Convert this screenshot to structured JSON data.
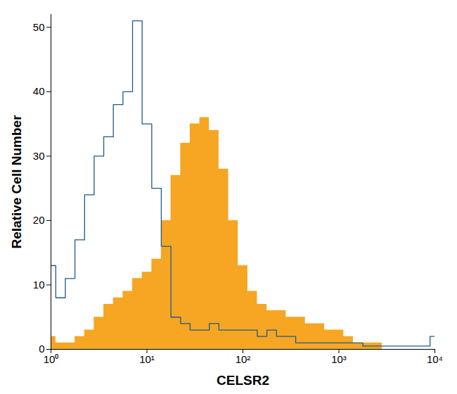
{
  "chart_data": {
    "type": "histogram",
    "x_label": "CELSR2",
    "y_label": "Relative Cell Number",
    "log": "x",
    "grid": false,
    "xlim": [
      1,
      10000
    ],
    "ylim": [
      0,
      52
    ],
    "xticks": [
      {
        "value": 1,
        "label": "10⁰"
      },
      {
        "value": 10,
        "label": "10¹"
      },
      {
        "value": 100,
        "label": "10²"
      },
      {
        "value": 1000,
        "label": "10³"
      },
      {
        "value": 10000,
        "label": "10⁴"
      }
    ],
    "yticks": [
      0,
      10,
      20,
      30,
      40,
      50
    ],
    "x": [
      1,
      1.26,
      1.58,
      2.0,
      2.51,
      3.16,
      3.98,
      5.01,
      6.31,
      7.94,
      10,
      12.6,
      15.8,
      20,
      25.1,
      31.6,
      39.8,
      50.1,
      63.1,
      79.4,
      100,
      126,
      158,
      200,
      251,
      316,
      398,
      501,
      631,
      794,
      1000,
      1259,
      1585,
      1995,
      2512,
      3162,
      3981,
      5012,
      6310,
      7943,
      10000
    ],
    "series": [
      {
        "type": "area",
        "color": "#f6a623",
        "values": [
          2,
          1,
          1,
          2,
          3,
          5,
          7,
          8,
          9,
          11,
          12,
          14,
          20,
          27,
          32,
          35,
          36,
          34,
          28,
          20,
          13,
          9,
          7,
          6,
          6,
          5,
          5,
          4,
          4,
          3,
          3,
          2,
          1,
          1,
          1,
          0,
          0,
          0,
          0,
          0,
          0
        ]
      },
      {
        "type": "line",
        "color": "#1f5a8c",
        "values": [
          13,
          8,
          11,
          17,
          24,
          30,
          33,
          38,
          40,
          51,
          35,
          25,
          16,
          5,
          4,
          3,
          3,
          4,
          3,
          3,
          3,
          3,
          2,
          3,
          2,
          2,
          1,
          1,
          1,
          1,
          1,
          1,
          1,
          0.5,
          0.5,
          0.5,
          0.5,
          0.5,
          0.5,
          0.5,
          2
        ]
      }
    ]
  }
}
